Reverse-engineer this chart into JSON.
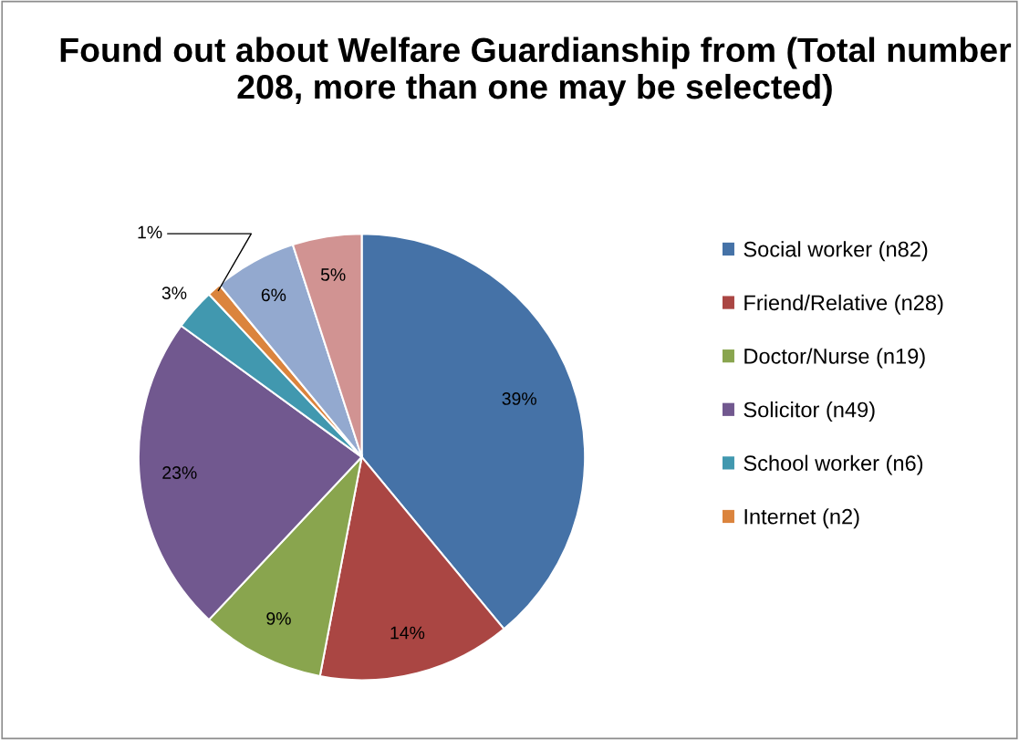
{
  "chart_data": {
    "type": "pie",
    "title": "Found out about Welfare Guardianship from (Total number 208, more than one may be selected)",
    "categories": [
      "Social worker (n82)",
      "Friend/Relative (n28)",
      "Doctor/Nurse (n19)",
      "Solicitor (n49)",
      "School worker (n6)",
      "Internet (n2)",
      null,
      null
    ],
    "values": [
      39,
      14,
      9,
      23,
      3,
      1,
      6,
      5
    ],
    "value_labels": [
      "39%",
      "14%",
      "9%",
      "23%",
      "3%",
      "1%",
      "6%",
      "5%"
    ],
    "colors": [
      "#4572a7",
      "#aa4643",
      "#89a54e",
      "#71588f",
      "#4198af",
      "#db843d",
      "#93a9cf",
      "#d19392"
    ],
    "legend": "right"
  }
}
